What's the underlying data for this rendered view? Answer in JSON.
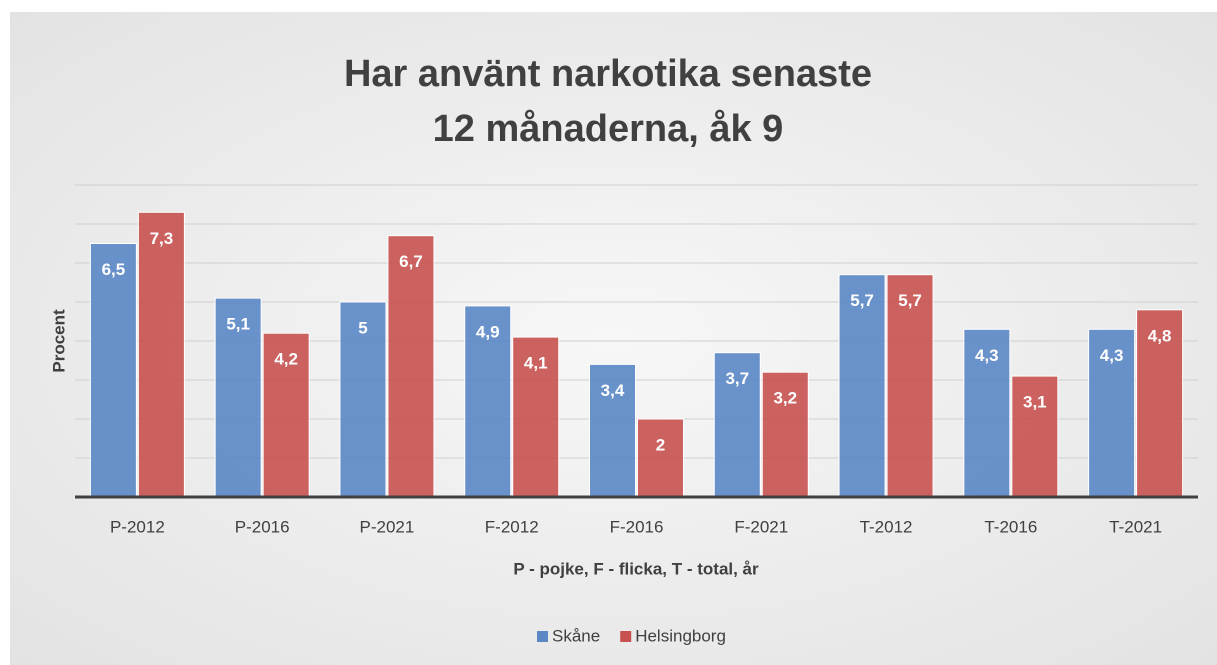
{
  "chart_data": {
    "type": "bar",
    "title": [
      "Har använt narkotika senaste",
      "12 månaderna, åk 9"
    ],
    "x_label": "P - pojke, F - flicka, T - total, år",
    "y_label": "Procent",
    "categories": [
      "P-2012",
      "P-2016",
      "P-2021",
      "F-2012",
      "F-2016",
      "F-2021",
      "T-2012",
      "T-2016",
      "T-2021"
    ],
    "series": [
      {
        "name": "Skåne",
        "color": "#5b87c5",
        "values": [
          6.5,
          5.1,
          5,
          4.9,
          3.4,
          3.7,
          5.7,
          4.3,
          4.3
        ],
        "value_labels": [
          "6,5",
          "5,1",
          "5",
          "4,9",
          "3,4",
          "3,7",
          "5,7",
          "4,3",
          "4,3"
        ]
      },
      {
        "name": "Helsingborg",
        "color": "#c85250",
        "values": [
          7.3,
          4.2,
          6.7,
          4.1,
          2,
          3.2,
          5.7,
          3.1,
          4.8
        ],
        "value_labels": [
          "7,3",
          "4,2",
          "6,7",
          "4,1",
          "2",
          "3,2",
          "5,7",
          "3,1",
          "4,8"
        ]
      }
    ],
    "ylim": [
      0,
      8
    ],
    "yticks": [
      0,
      1,
      2,
      3,
      4,
      5,
      6,
      7,
      8
    ],
    "grid": true,
    "legend": "bottom"
  }
}
